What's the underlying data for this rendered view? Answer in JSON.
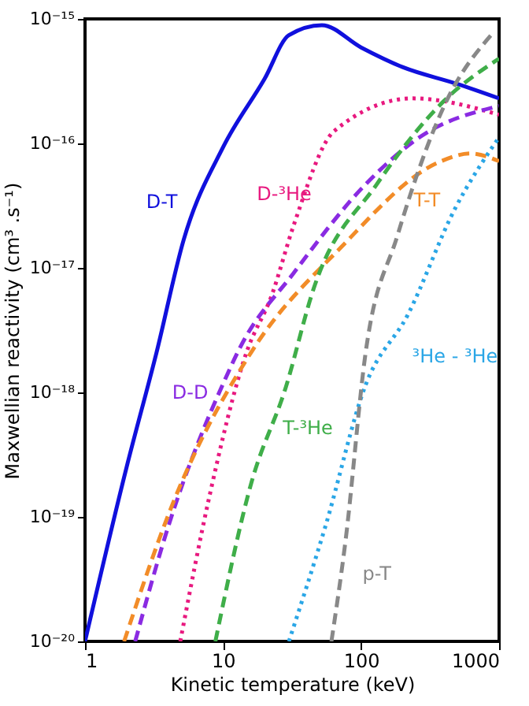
{
  "chart_data": {
    "type": "line",
    "log": "xy",
    "xlabel": "Kinetic temperature (keV)",
    "ylabel": "Maxwellian reactivity (cm³ .s⁻¹)",
    "xlim": [
      1,
      1000
    ],
    "xticks": [
      1,
      10,
      100,
      1000
    ],
    "ylim": [
      1e-20,
      1e-15
    ],
    "yticks": [
      {
        "value": 1e-20,
        "label": "10⁻²⁰"
      },
      {
        "value": 1e-19,
        "label": "10⁻¹⁹"
      },
      {
        "value": 1e-18,
        "label": "10⁻¹⁸"
      },
      {
        "value": 1e-17,
        "label": "10⁻¹⁷"
      },
      {
        "value": 1e-16,
        "label": "10⁻¹⁶"
      },
      {
        "value": 1e-15,
        "label": "10⁻¹⁵"
      }
    ],
    "grid": false,
    "series": [
      {
        "color": "#1010dd",
        "line_style": "solid",
        "x": [
          1,
          2,
          3.3,
          5.2,
          10,
          20,
          30,
          52,
          100,
          200,
          500,
          1000
        ],
        "values": [
          1e-20,
          2.5e-19,
          2.1e-18,
          1.7e-17,
          9.3e-17,
          3.3e-16,
          7.4e-16,
          8.9e-16,
          5.9e-16,
          4.1e-16,
          3e-16,
          2.3e-16
        ]
      },
      {
        "color": "#e8197f",
        "line_style": "dotted",
        "x": [
          4.9,
          7.9,
          14.8,
          22.5,
          32.5,
          64,
          237,
          1000
        ],
        "values": [
          1e-20,
          1.4e-19,
          2.1e-18,
          6e-18,
          2.2e-17,
          1.26e-16,
          2.3e-16,
          1.7e-16
        ]
      },
      {
        "color": "#8a2be2",
        "line_style": "dashed",
        "x": [
          2.31,
          4.0,
          10.3,
          13.3,
          32.5,
          108,
          265,
          1000
        ],
        "values": [
          1e-20,
          8.3e-20,
          1.26e-18,
          2.3e-18,
          9.1e-18,
          4.7e-17,
          1.12e-16,
          2e-16
        ]
      },
      {
        "color": "#f28c28",
        "line_style": "dashed",
        "x": [
          1.92,
          4.3,
          16,
          71,
          370,
          620,
          1000
        ],
        "values": [
          1e-20,
          1.26e-19,
          2.1e-18,
          1.45e-17,
          7.1e-17,
          8.3e-17,
          7.2e-17
        ]
      },
      {
        "color": "#3fae49",
        "line_style": "dashed",
        "x": [
          8.8,
          16,
          28.5,
          45.5,
          130,
          400,
          1000
        ],
        "values": [
          1e-20,
          1.86e-19,
          1.1e-18,
          6.9e-18,
          4.7e-17,
          2.2e-16,
          4.8e-16
        ]
      },
      {
        "color": "#2aa6e6",
        "line_style": "dotted",
        "x": [
          30,
          55,
          108,
          218,
          480,
          1000
        ],
        "values": [
          1e-20,
          8.3e-20,
          1.15e-18,
          4.2e-18,
          3e-17,
          1.12e-16
        ]
      },
      {
        "color": "#888888",
        "line_style": "dashed",
        "x": [
          61,
          77,
          108,
          183,
          400,
          920
        ],
        "values": [
          1e-20,
          6.3e-20,
          2.1e-18,
          1.8e-17,
          2e-16,
          7.9e-16
        ]
      }
    ],
    "annotations": [
      {
        "text": "D-T",
        "x": 5.2,
        "y": 1.7e-17
      },
      {
        "text": "D-³He",
        "x": 32.5,
        "y": 2.2e-17
      },
      {
        "text": "D-D",
        "x": 10.3,
        "y": 1.26e-18
      },
      {
        "text": "T-T",
        "x": 370,
        "y": 7.1e-17
      },
      {
        "text": "T-³He",
        "x": 28.5,
        "y": 1.1e-18
      },
      {
        "text": "³He - ³He",
        "x": 218,
        "y": 4.2e-18
      },
      {
        "text": "p-T",
        "x": 77,
        "y": 6.3e-20
      }
    ]
  }
}
